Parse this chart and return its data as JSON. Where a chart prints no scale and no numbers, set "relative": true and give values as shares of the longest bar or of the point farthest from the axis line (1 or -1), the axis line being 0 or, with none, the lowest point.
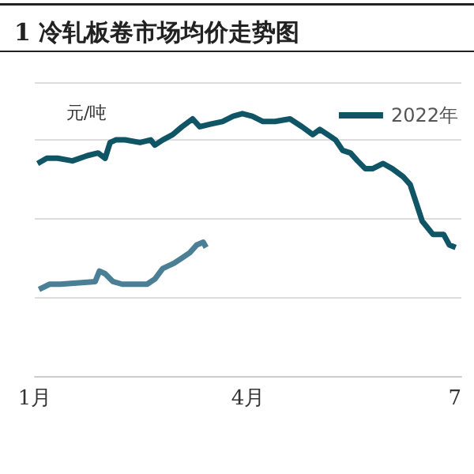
{
  "chart_data": {
    "type": "line",
    "title": "1 冷轧板卷市场均价走势图",
    "relative": true,
    "annotations": [
      "元/吨"
    ],
    "xlim": [
      1,
      7
    ],
    "xticks": [
      {
        "value": 1,
        "label": "1月"
      },
      {
        "value": 4,
        "label": "4月"
      },
      {
        "value": 7,
        "label": "7"
      }
    ],
    "series": [
      {
        "name": "2022年",
        "color": "#0f5566",
        "x": [
          1.04,
          1.17,
          1.32,
          1.53,
          1.74,
          1.89,
          1.99,
          2.06,
          2.14,
          2.27,
          2.48,
          2.63,
          2.69,
          2.8,
          2.94,
          3.07,
          3.22,
          3.32,
          3.47,
          3.64,
          3.79,
          3.92,
          4.06,
          4.21,
          4.38,
          4.59,
          4.76,
          4.91,
          5.01,
          5.12,
          5.23,
          5.33,
          5.44,
          5.54,
          5.65,
          5.75,
          5.9,
          6.03,
          6.18,
          6.28,
          6.45,
          6.6,
          6.75,
          6.83,
          6.92
        ],
        "values": [
          0.81,
          0.83,
          0.83,
          0.82,
          0.84,
          0.85,
          0.83,
          0.89,
          0.9,
          0.9,
          0.89,
          0.9,
          0.88,
          0.9,
          0.92,
          0.95,
          0.98,
          0.95,
          0.96,
          0.97,
          0.99,
          1.0,
          0.99,
          0.97,
          0.97,
          0.98,
          0.95,
          0.92,
          0.94,
          0.92,
          0.9,
          0.86,
          0.85,
          0.82,
          0.79,
          0.79,
          0.81,
          0.79,
          0.76,
          0.73,
          0.59,
          0.54,
          0.54,
          0.5,
          0.49
        ]
      },
      {
        "color": "#4a7f96",
        "x": [
          1.06,
          1.21,
          1.36,
          1.85,
          1.91,
          1.99,
          2.1,
          2.23,
          2.58,
          2.69,
          2.8,
          2.96,
          3.07,
          3.18,
          3.28,
          3.37,
          3.41
        ],
        "values": [
          0.33,
          0.35,
          0.35,
          0.36,
          0.4,
          0.39,
          0.36,
          0.35,
          0.35,
          0.37,
          0.41,
          0.43,
          0.45,
          0.47,
          0.5,
          0.51,
          0.49
        ]
      }
    ],
    "grid": "y",
    "legend": "top right",
    "marker": "none",
    "line_style": "solid"
  }
}
